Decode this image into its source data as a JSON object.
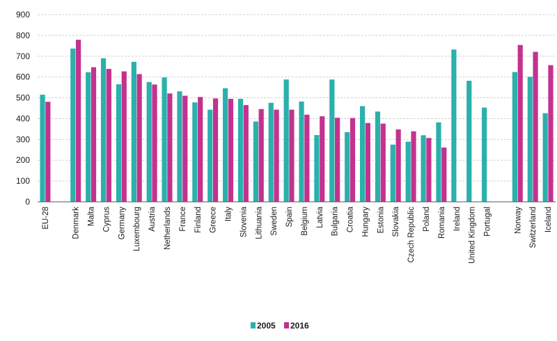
{
  "chart_data": {
    "type": "bar",
    "title": "",
    "xlabel": "",
    "ylabel": "",
    "ylim": [
      0,
      900
    ],
    "yticks": [
      0,
      100,
      200,
      300,
      400,
      500,
      600,
      700,
      800,
      900
    ],
    "grid": true,
    "legend_position": "bottom-center",
    "colors": {
      "2005": "#2bb0ac",
      "2016": "#c3328f"
    },
    "categories": [
      "EU-28",
      "",
      "Denmark",
      "Malta",
      "Cyprus",
      "Germany",
      "Luxembourg",
      "Austria",
      "Netherlands",
      "France",
      "Finland",
      "Greece",
      "Italy",
      "Slovenia",
      "Lithuania",
      "Sweden",
      "Spain",
      "Belgium",
      "Latvia",
      "Bulgaria",
      "Croatia",
      "Hungary",
      "Estonia",
      "Slovakia",
      "Czech Republic",
      "Poland",
      "Romania",
      "Ireland",
      "United Kingdom",
      "Portugal",
      "",
      "Norway",
      "Switzerland",
      "Iceland"
    ],
    "series": [
      {
        "name": "2005",
        "values": [
          515,
          null,
          737,
          623,
          690,
          565,
          673,
          576,
          598,
          531,
          478,
          443,
          546,
          495,
          386,
          476,
          588,
          482,
          321,
          588,
          335,
          460,
          434,
          275,
          289,
          320,
          382,
          732,
          582,
          453,
          null,
          624,
          601,
          426
        ]
      },
      {
        "name": "2016",
        "values": [
          481,
          null,
          779,
          647,
          639,
          627,
          614,
          564,
          521,
          510,
          504,
          497,
          495,
          465,
          446,
          443,
          443,
          419,
          411,
          404,
          403,
          379,
          376,
          348,
          339,
          307,
          261,
          null,
          null,
          null,
          null,
          754,
          721,
          657
        ]
      }
    ]
  }
}
